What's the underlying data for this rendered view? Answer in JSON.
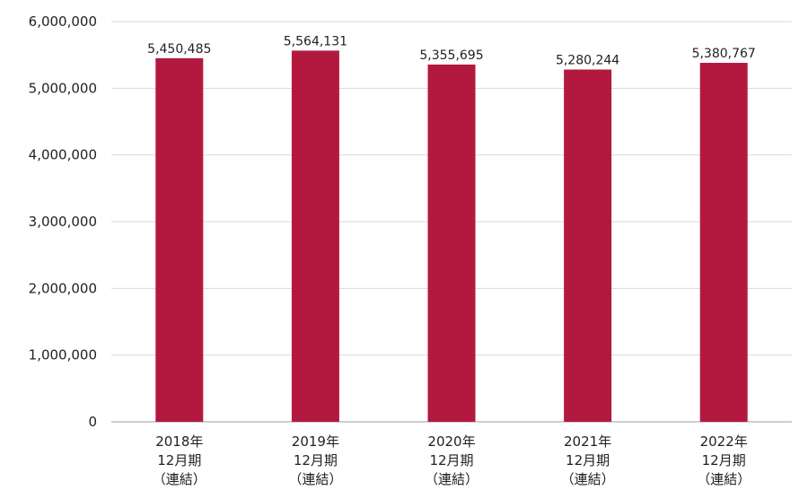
{
  "chart_data": {
    "type": "bar",
    "title": "",
    "xlabel": "",
    "ylabel": "",
    "categories": [
      [
        "2018年",
        "12月期",
        "（連結）"
      ],
      [
        "2019年",
        "12月期",
        "（連結）"
      ],
      [
        "2020年",
        "12月期",
        "（連結）"
      ],
      [
        "2021年",
        "12月期",
        "（連結）"
      ],
      [
        "2022年",
        "12月期",
        "（連結）"
      ]
    ],
    "values": [
      5450485,
      5564131,
      5355695,
      5280244,
      5380767
    ],
    "data_labels": [
      "5,450,485",
      "5,564,131",
      "5,355,695",
      "5,280,244",
      "5,380,767"
    ],
    "ylim": [
      0,
      6000000
    ],
    "yticks": [
      0,
      1000000,
      2000000,
      3000000,
      4000000,
      5000000,
      6000000
    ],
    "ytick_labels": [
      "0",
      "1,000,000",
      "2,000,000",
      "3,000,000",
      "4,000,000",
      "5,000,000",
      "6,000,000"
    ],
    "grid": true,
    "legend": "none",
    "colors": {
      "bar": "#b3193f",
      "grid": "#d9d9d9",
      "axis": "#bfbfbf",
      "text": "#222222"
    }
  }
}
